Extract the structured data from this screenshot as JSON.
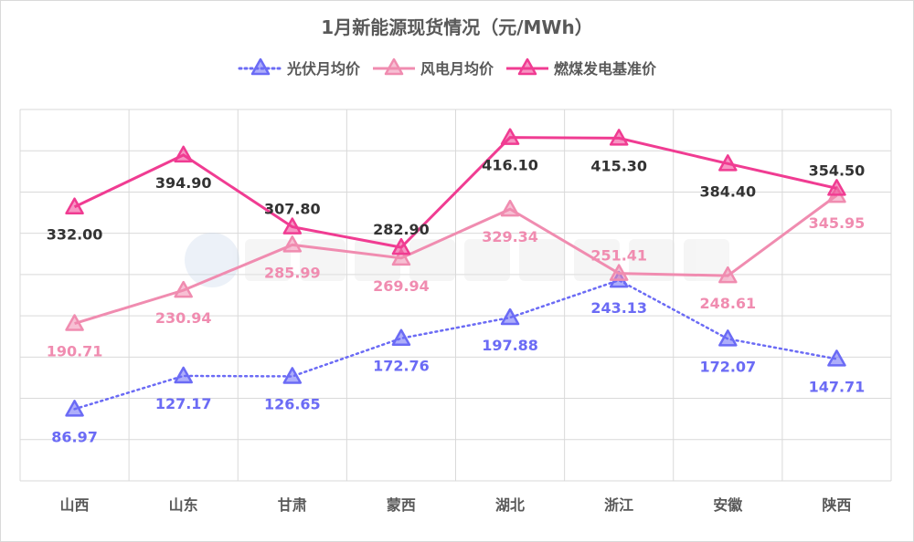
{
  "chart_data": {
    "type": "line",
    "title": "1月新能源现货情况（元/MWh）",
    "xlabel": "",
    "ylabel": "",
    "ylim": [
      0,
      450
    ],
    "ytick_step": 50,
    "grid": true,
    "legend_position": "top",
    "categories": [
      "山西",
      "山东",
      "甘肃",
      "蒙西",
      "湖北",
      "浙江",
      "安徽",
      "陕西"
    ],
    "series": [
      {
        "name": "光伏月均价",
        "color": "#6b6bf5",
        "style": "dotted",
        "values": [
          86.97,
          127.17,
          126.65,
          172.76,
          197.88,
          243.13,
          172.07,
          147.71
        ]
      },
      {
        "name": "风电月均价",
        "color": "#f08cb0",
        "style": "solid",
        "values": [
          190.71,
          230.94,
          285.99,
          269.94,
          329.34,
          251.41,
          248.61,
          345.95
        ]
      },
      {
        "name": "燃煤发电基准价",
        "color": "#f03c92",
        "style": "solid",
        "values": [
          332.0,
          394.9,
          307.8,
          282.9,
          416.1,
          415.3,
          384.4,
          354.5
        ]
      }
    ],
    "label_colors": [
      "#6b6bf5",
      "#f08cb0",
      "#333333"
    ]
  },
  "watermark": "北极星太阳能光伏网"
}
